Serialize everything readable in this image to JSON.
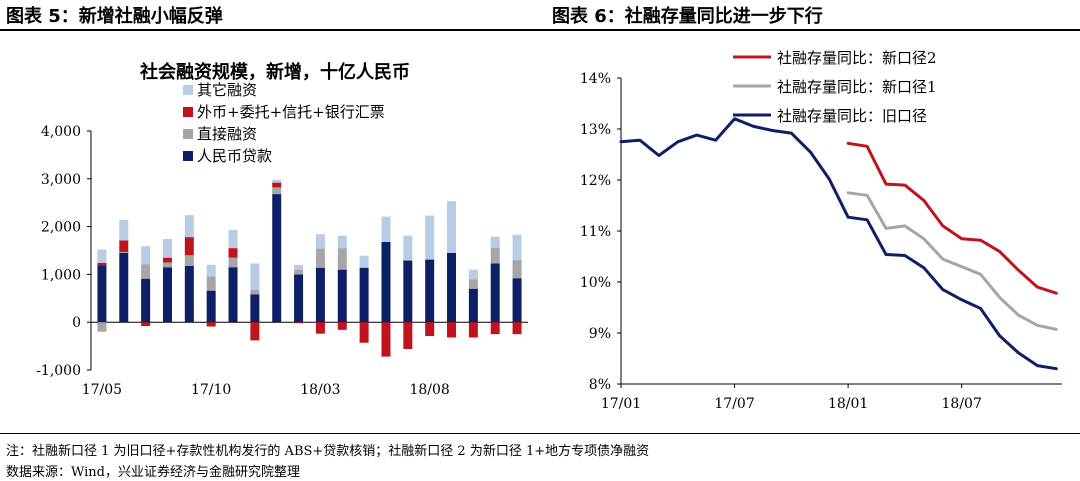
{
  "panel_left_title": "图表 5：新增社融小幅反弹",
  "panel_right_title": "图表 6：社融存量同比进一步下行",
  "footnote": "注：社融新口径 1 为旧口径+存款性机构发行的 ABS+贷款核销；社融新口径 2 为新口径 1+地方专项债净融资",
  "source": "数据来源：Wind，兴业证券经济与金融研究院整理",
  "chart_data": [
    {
      "type": "bar",
      "stacked": true,
      "title": "社会融资规模，新增，十亿人民币",
      "categories": [
        "17/05",
        "17/06",
        "17/07",
        "17/08",
        "17/09",
        "17/10",
        "17/11",
        "17/12",
        "18/01",
        "18/02",
        "18/03",
        "18/04",
        "18/05",
        "18/06",
        "18/07",
        "18/08",
        "18/09",
        "18/10",
        "18/11",
        "18/12"
      ],
      "x_tick_labels": [
        "17/05",
        "17/10",
        "18/03",
        "18/08"
      ],
      "ylim": [
        -1000,
        4000
      ],
      "yticks": [
        "-1,000",
        "0",
        "1,000",
        "2,000",
        "3,000",
        "4,000"
      ],
      "legend_position": "top-left",
      "series": [
        {
          "name": "人民币贷款",
          "color": "#0d1f66",
          "values": [
            1190,
            1450,
            910,
            1150,
            1180,
            660,
            1150,
            580,
            2680,
            1000,
            1140,
            1100,
            1140,
            1680,
            1290,
            1310,
            1450,
            700,
            1230,
            920
          ]
        },
        {
          "name": "直接融资",
          "color": "#a6a6a6",
          "values": [
            -200,
            20,
            300,
            100,
            220,
            300,
            200,
            100,
            140,
            100,
            400,
            450,
            0,
            0,
            0,
            0,
            0,
            200,
            330,
            380
          ]
        },
        {
          "name": "外币+委托+信托+银行汇票",
          "color": "#c0141c",
          "values": [
            50,
            240,
            -80,
            100,
            380,
            -90,
            200,
            -380,
            100,
            -20,
            -240,
            -160,
            -430,
            -720,
            -560,
            -290,
            -320,
            -320,
            -250,
            -250
          ]
        },
        {
          "name": "其它融资",
          "color": "#b8cce4",
          "values": [
            280,
            430,
            380,
            390,
            460,
            240,
            380,
            550,
            60,
            100,
            300,
            260,
            250,
            530,
            520,
            920,
            1080,
            200,
            230,
            530
          ]
        }
      ]
    },
    {
      "type": "line",
      "categories": [
        "17/01",
        "17/02",
        "17/03",
        "17/04",
        "17/05",
        "17/06",
        "17/07",
        "17/08",
        "17/09",
        "17/10",
        "17/11",
        "17/12",
        "18/01",
        "18/02",
        "18/03",
        "18/04",
        "18/05",
        "18/06",
        "18/07",
        "18/08",
        "18/09",
        "18/10",
        "18/11",
        "18/12"
      ],
      "x_tick_labels": [
        "17/01",
        "17/07",
        "18/01",
        "18/07"
      ],
      "ylim": [
        8,
        14
      ],
      "yticks": [
        "8%",
        "9%",
        "10%",
        "11%",
        "12%",
        "13%",
        "14%"
      ],
      "legend_position": "top-right",
      "series": [
        {
          "name": "社融存量同比：新口径2",
          "color": "#c0141c",
          "values": [
            null,
            null,
            null,
            null,
            null,
            null,
            null,
            null,
            null,
            null,
            null,
            null,
            12.72,
            12.66,
            11.92,
            11.9,
            11.6,
            11.1,
            10.85,
            10.82,
            10.6,
            10.23,
            9.9,
            9.78
          ]
        },
        {
          "name": "社融存量同比：新口径1",
          "color": "#a6a6a6",
          "values": [
            null,
            null,
            null,
            null,
            null,
            null,
            null,
            null,
            null,
            null,
            null,
            null,
            11.75,
            11.7,
            11.05,
            11.1,
            10.85,
            10.45,
            10.3,
            10.15,
            9.7,
            9.35,
            9.15,
            9.07
          ]
        },
        {
          "name": "社融存量同比：旧口径",
          "color": "#0d1f66",
          "values": [
            12.75,
            12.78,
            12.48,
            12.75,
            12.88,
            12.78,
            13.2,
            13.05,
            12.97,
            12.92,
            12.55,
            12.02,
            11.27,
            11.22,
            10.54,
            10.52,
            10.28,
            9.85,
            9.65,
            9.48,
            8.95,
            8.61,
            8.36,
            8.3
          ]
        }
      ]
    }
  ]
}
